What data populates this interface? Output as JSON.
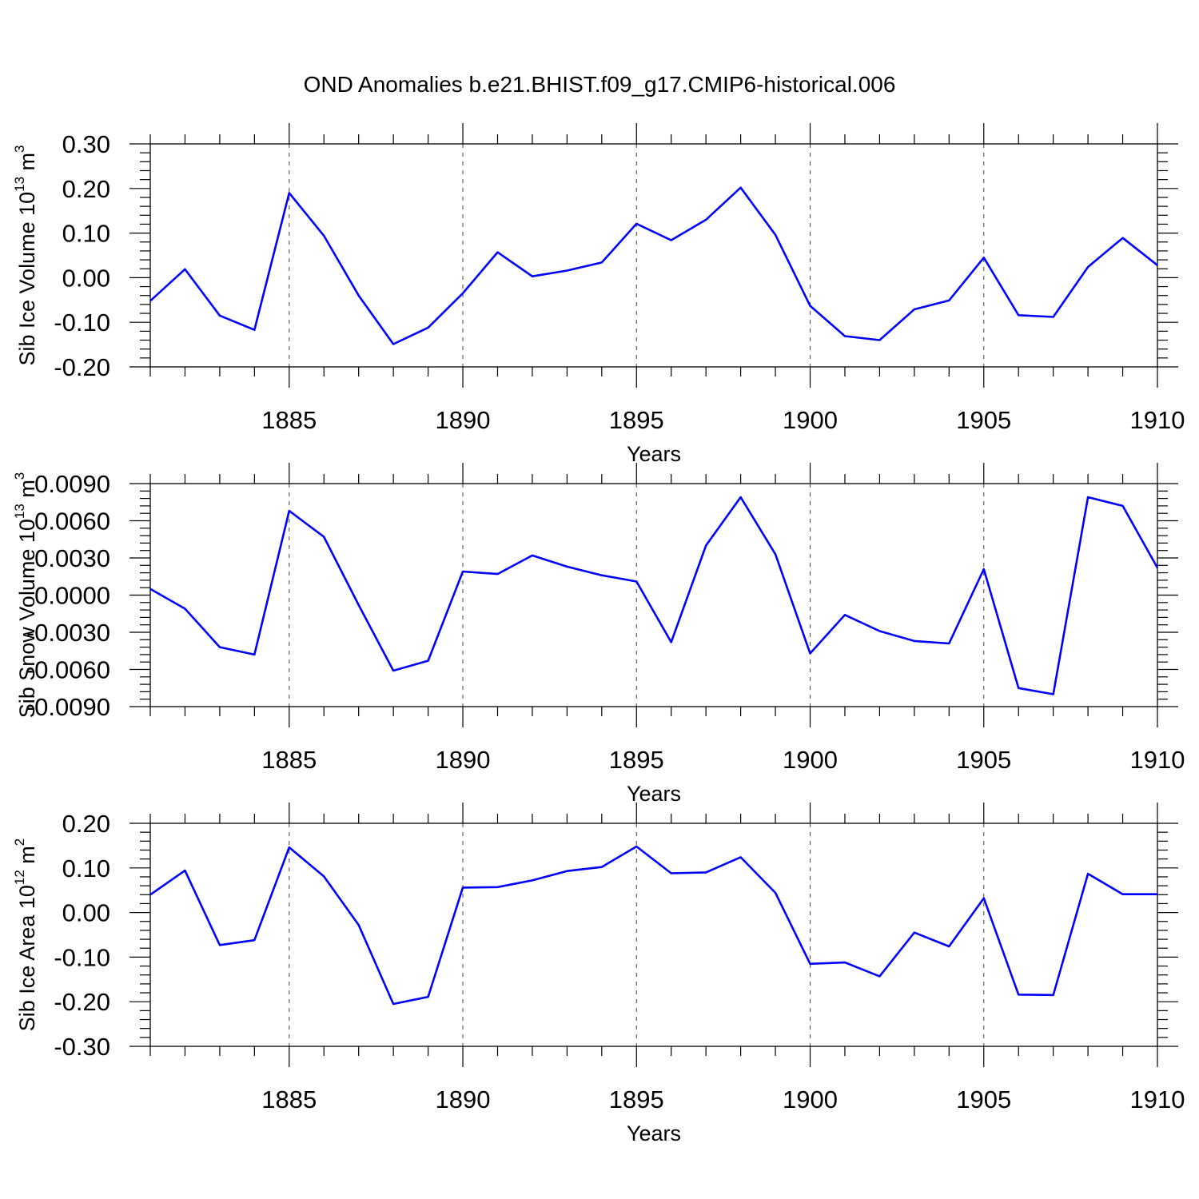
{
  "title": "OND Anomalies b.e21.BHIST.f09_g17.CMIP6-historical.006",
  "colors": {
    "series": "#0000ff",
    "frame": "#000000",
    "grid": "#555555"
  },
  "chart_data": [
    {
      "type": "line",
      "xlabel": "Years",
      "ylabel_main": "Sib Ice Volume 10",
      "ylabel_exp": "13",
      "ylabel_unit": " m",
      "ylabel_unit_exp": "3",
      "xlim": [
        1881,
        1910
      ],
      "ylim": [
        -0.2,
        0.3
      ],
      "yticks": [
        "-0.20",
        "-0.10",
        "0.00",
        "0.10",
        "0.20",
        "0.30"
      ],
      "xticks": [
        "1885",
        "1890",
        "1895",
        "1900",
        "1905",
        "1910"
      ],
      "x": [
        1881,
        1882,
        1883,
        1884,
        1885,
        1886,
        1887,
        1888,
        1889,
        1890,
        1891,
        1892,
        1893,
        1894,
        1895,
        1896,
        1897,
        1898,
        1899,
        1900,
        1901,
        1902,
        1903,
        1904,
        1905,
        1906,
        1907,
        1908,
        1909,
        1910
      ],
      "values": [
        -0.052,
        0.019,
        -0.085,
        -0.117,
        0.19,
        0.094,
        -0.04,
        -0.149,
        -0.112,
        -0.035,
        0.057,
        0.003,
        0.016,
        0.034,
        0.121,
        0.084,
        0.13,
        0.202,
        0.096,
        -0.063,
        -0.131,
        -0.14,
        -0.071,
        -0.051,
        0.045,
        -0.084,
        -0.088,
        0.024,
        0.089,
        0.028
      ]
    },
    {
      "type": "line",
      "xlabel": "Years",
      "ylabel_main": "Sib Snow Volume 10",
      "ylabel_exp": "13",
      "ylabel_unit": " m",
      "ylabel_unit_exp": "3",
      "xlim": [
        1881,
        1910
      ],
      "ylim": [
        -0.009,
        0.009
      ],
      "yticks": [
        "-0.0090",
        "-0.0060",
        "-0.0030",
        "0.0000",
        "0.0030",
        "0.0060",
        "0.0090"
      ],
      "xticks": [
        "1885",
        "1890",
        "1895",
        "1900",
        "1905",
        "1910"
      ],
      "x": [
        1881,
        1882,
        1883,
        1884,
        1885,
        1886,
        1887,
        1888,
        1889,
        1890,
        1891,
        1892,
        1893,
        1894,
        1895,
        1896,
        1897,
        1898,
        1899,
        1900,
        1901,
        1902,
        1903,
        1904,
        1905,
        1906,
        1907,
        1908,
        1909,
        1910
      ],
      "values": [
        0.0005,
        -0.0011,
        -0.0042,
        -0.0048,
        0.0068,
        0.0047,
        -0.0008,
        -0.0061,
        -0.0053,
        0.0019,
        0.0017,
        0.0032,
        0.0023,
        0.0016,
        0.0011,
        -0.0038,
        0.004,
        0.0079,
        0.0033,
        -0.0047,
        -0.0016,
        -0.0029,
        -0.0037,
        -0.0039,
        0.0021,
        -0.0075,
        -0.008,
        0.0079,
        0.0072,
        0.0022
      ]
    },
    {
      "type": "line",
      "xlabel": "Years",
      "ylabel_main": "Sib Ice Area 10",
      "ylabel_exp": "12",
      "ylabel_unit": " m",
      "ylabel_unit_exp": "2",
      "xlim": [
        1881,
        1910
      ],
      "ylim": [
        -0.3,
        0.2
      ],
      "yticks": [
        "-0.30",
        "-0.20",
        "-0.10",
        "0.00",
        "0.10",
        "0.20"
      ],
      "xticks": [
        "1885",
        "1890",
        "1895",
        "1900",
        "1905",
        "1910"
      ],
      "x": [
        1881,
        1882,
        1883,
        1884,
        1885,
        1886,
        1887,
        1888,
        1889,
        1890,
        1891,
        1892,
        1893,
        1894,
        1895,
        1896,
        1897,
        1898,
        1899,
        1900,
        1901,
        1902,
        1903,
        1904,
        1905,
        1906,
        1907,
        1908,
        1909,
        1910
      ],
      "values": [
        0.04,
        0.094,
        -0.073,
        -0.062,
        0.146,
        0.081,
        -0.028,
        -0.205,
        -0.189,
        0.056,
        0.057,
        0.072,
        0.093,
        0.102,
        0.148,
        0.088,
        0.09,
        0.124,
        0.044,
        -0.115,
        -0.112,
        -0.143,
        -0.045,
        -0.076,
        0.032,
        -0.184,
        -0.185,
        0.087,
        0.041,
        0.041
      ]
    }
  ]
}
